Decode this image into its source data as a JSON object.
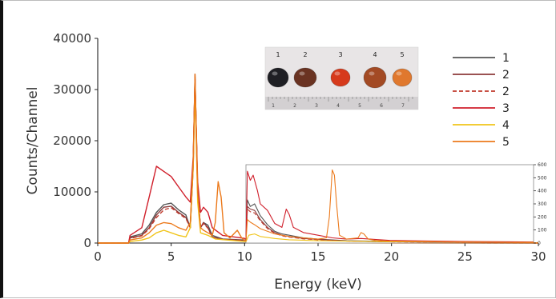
{
  "chart_data": {
    "type": "line",
    "title": "",
    "xlabel": "Energy (keV)",
    "ylabel": "Counts/Channel",
    "xlim": [
      0,
      30
    ],
    "ylim": [
      0,
      40000
    ],
    "xticks": [
      "0",
      "5",
      "10",
      "15",
      "20",
      "25",
      "30"
    ],
    "yticks": [
      "0",
      "10000",
      "20000",
      "30000",
      "40000"
    ],
    "grid": false,
    "legend_position": "top-right",
    "series": [
      {
        "name": "1",
        "color": "#555555",
        "dash": "",
        "points": [
          [
            0,
            0
          ],
          [
            2.1,
            0
          ],
          [
            2.2,
            1200
          ],
          [
            3,
            1800
          ],
          [
            3.5,
            3500
          ],
          [
            4,
            6000
          ],
          [
            4.5,
            7500
          ],
          [
            5,
            7800
          ],
          [
            5.5,
            6500
          ],
          [
            6,
            5500
          ],
          [
            6.3,
            3000
          ],
          [
            6.5,
            15000
          ],
          [
            6.62,
            32000
          ],
          [
            6.8,
            10000
          ],
          [
            7,
            3000
          ],
          [
            7.2,
            4000
          ],
          [
            7.5,
            3500
          ],
          [
            7.8,
            1500
          ],
          [
            8.5,
            800
          ],
          [
            10,
            600
          ],
          [
            10.2,
            400
          ],
          [
            12,
            250
          ],
          [
            15,
            100
          ],
          [
            20,
            40
          ],
          [
            30,
            20
          ]
        ]
      },
      {
        "name": "2",
        "color": "#8b3a3a",
        "dash": "",
        "points": [
          [
            0,
            0
          ],
          [
            2.1,
            0
          ],
          [
            2.2,
            1000
          ],
          [
            3,
            1500
          ],
          [
            3.5,
            3000
          ],
          [
            4,
            5500
          ],
          [
            4.5,
            7000
          ],
          [
            5,
            7200
          ],
          [
            5.5,
            6000
          ],
          [
            6,
            5000
          ],
          [
            6.3,
            3000
          ],
          [
            6.5,
            16000
          ],
          [
            6.62,
            33000
          ],
          [
            6.8,
            10000
          ],
          [
            7,
            3000
          ],
          [
            7.2,
            4000
          ],
          [
            7.5,
            3000
          ],
          [
            7.8,
            1200
          ],
          [
            8.5,
            700
          ],
          [
            10,
            500
          ],
          [
            10.2,
            350
          ],
          [
            12,
            200
          ],
          [
            15,
            80
          ],
          [
            20,
            30
          ],
          [
            30,
            15
          ]
        ]
      },
      {
        "name": "2",
        "color": "#c0392b",
        "dash": "5 3",
        "points": [
          [
            0,
            0
          ],
          [
            2.1,
            0
          ],
          [
            2.2,
            900
          ],
          [
            3,
            1400
          ],
          [
            3.5,
            2800
          ],
          [
            4,
            5000
          ],
          [
            4.5,
            6500
          ],
          [
            5,
            6900
          ],
          [
            5.5,
            5800
          ],
          [
            6,
            4800
          ],
          [
            6.3,
            3000
          ],
          [
            6.5,
            15500
          ],
          [
            6.62,
            32500
          ],
          [
            6.8,
            9500
          ],
          [
            7,
            3000
          ],
          [
            7.2,
            3800
          ],
          [
            7.5,
            2900
          ],
          [
            7.8,
            1100
          ],
          [
            8.5,
            700
          ],
          [
            10,
            500
          ],
          [
            10.2,
            320
          ],
          [
            12,
            180
          ],
          [
            15,
            70
          ],
          [
            20,
            25
          ],
          [
            30,
            12
          ]
        ]
      },
      {
        "name": "3",
        "color": "#d01f2b",
        "dash": "",
        "points": [
          [
            0,
            0
          ],
          [
            2.1,
            0
          ],
          [
            2.2,
            1500
          ],
          [
            3,
            3000
          ],
          [
            3.5,
            9000
          ],
          [
            4,
            15000
          ],
          [
            4.5,
            14000
          ],
          [
            5,
            13000
          ],
          [
            5.5,
            11000
          ],
          [
            6,
            9000
          ],
          [
            6.3,
            8000
          ],
          [
            6.5,
            17000
          ],
          [
            6.62,
            32000
          ],
          [
            6.8,
            12000
          ],
          [
            7,
            6000
          ],
          [
            7.2,
            7000
          ],
          [
            7.5,
            6000
          ],
          [
            7.8,
            3000
          ],
          [
            8.5,
            1500
          ],
          [
            10,
            900
          ],
          [
            10.2,
            550
          ],
          [
            10.5,
            500
          ],
          [
            11,
            350
          ],
          [
            12,
            200
          ],
          [
            12.8,
            280
          ],
          [
            13.3,
            150
          ],
          [
            15,
            80
          ],
          [
            20,
            30
          ],
          [
            30,
            15
          ]
        ]
      },
      {
        "name": "4",
        "color": "#f0c419",
        "dash": "",
        "points": [
          [
            0,
            0
          ],
          [
            2.1,
            0
          ],
          [
            2.2,
            300
          ],
          [
            3,
            600
          ],
          [
            3.5,
            1000
          ],
          [
            4,
            2000
          ],
          [
            4.5,
            2500
          ],
          [
            5,
            2000
          ],
          [
            5.5,
            1500
          ],
          [
            6,
            1200
          ],
          [
            6.3,
            3000
          ],
          [
            6.5,
            15000
          ],
          [
            6.62,
            30000
          ],
          [
            6.8,
            8000
          ],
          [
            7,
            2000
          ],
          [
            7.5,
            1500
          ],
          [
            8,
            800
          ],
          [
            10,
            300
          ],
          [
            15,
            50
          ],
          [
            30,
            10
          ]
        ]
      },
      {
        "name": "5",
        "color": "#ec7a1c",
        "dash": "",
        "points": [
          [
            0,
            0
          ],
          [
            2.1,
            0
          ],
          [
            2.2,
            600
          ],
          [
            3,
            1000
          ],
          [
            3.5,
            2000
          ],
          [
            4,
            3500
          ],
          [
            4.5,
            4000
          ],
          [
            5,
            3800
          ],
          [
            5.5,
            3000
          ],
          [
            6,
            2500
          ],
          [
            6.3,
            4000
          ],
          [
            6.5,
            16000
          ],
          [
            6.62,
            33000
          ],
          [
            6.8,
            10000
          ],
          [
            7,
            3000
          ],
          [
            7.2,
            2500
          ],
          [
            7.5,
            2000
          ],
          [
            7.8,
            1500
          ],
          [
            8,
            4000
          ],
          [
            8.2,
            12000
          ],
          [
            8.4,
            9000
          ],
          [
            8.6,
            2000
          ],
          [
            9,
            1000
          ],
          [
            9.5,
            2500
          ],
          [
            9.8,
            1000
          ],
          [
            10,
            500
          ],
          [
            10.2,
            300
          ],
          [
            12,
            150
          ],
          [
            15,
            100
          ],
          [
            15.8,
            200
          ],
          [
            16,
            560
          ],
          [
            16.2,
            500
          ],
          [
            16.5,
            100
          ],
          [
            17,
            30
          ],
          [
            17.8,
            40
          ],
          [
            18,
            80
          ],
          [
            18.2,
            60
          ],
          [
            18.5,
            30
          ],
          [
            20,
            20
          ],
          [
            30,
            10
          ]
        ]
      }
    ],
    "inset": {
      "xlim": [
        10,
        30
      ],
      "ylim": [
        0,
        600
      ],
      "yticks": [
        "0",
        "100",
        "200",
        "300",
        "400",
        "500",
        "600"
      ],
      "series": [
        {
          "ref": 0,
          "points": [
            [
              10,
              20
            ],
            [
              10.1,
              330
            ],
            [
              10.3,
              280
            ],
            [
              10.6,
              300
            ],
            [
              11,
              210
            ],
            [
              11.5,
              140
            ],
            [
              12,
              90
            ],
            [
              12.5,
              70
            ],
            [
              13,
              60
            ],
            [
              14,
              40
            ],
            [
              15,
              30
            ],
            [
              17,
              18
            ],
            [
              20,
              12
            ],
            [
              25,
              6
            ],
            [
              30,
              4
            ]
          ]
        },
        {
          "ref": 1,
          "points": [
            [
              10,
              20
            ],
            [
              10.1,
              280
            ],
            [
              10.3,
              260
            ],
            [
              10.6,
              250
            ],
            [
              11,
              180
            ],
            [
              11.5,
              120
            ],
            [
              12,
              80
            ],
            [
              12.5,
              60
            ],
            [
              13,
              50
            ],
            [
              14,
              35
            ],
            [
              15,
              28
            ],
            [
              17,
              16
            ],
            [
              20,
              10
            ],
            [
              25,
              5
            ],
            [
              30,
              3
            ]
          ]
        },
        {
          "ref": 2,
          "points": [
            [
              10,
              20
            ],
            [
              10.1,
              260
            ],
            [
              10.3,
              240
            ],
            [
              10.6,
              230
            ],
            [
              11,
              170
            ],
            [
              11.5,
              110
            ],
            [
              12,
              75
            ],
            [
              12.5,
              55
            ],
            [
              13,
              45
            ],
            [
              14,
              32
            ],
            [
              15,
              25
            ],
            [
              17,
              15
            ],
            [
              20,
              9
            ],
            [
              25,
              5
            ],
            [
              30,
              3
            ]
          ]
        },
        {
          "ref": 3,
          "points": [
            [
              10,
              30
            ],
            [
              10.1,
              550
            ],
            [
              10.3,
              480
            ],
            [
              10.5,
              520
            ],
            [
              10.8,
              400
            ],
            [
              11,
              300
            ],
            [
              11.5,
              250
            ],
            [
              12,
              150
            ],
            [
              12.5,
              120
            ],
            [
              12.8,
              260
            ],
            [
              13,
              220
            ],
            [
              13.3,
              120
            ],
            [
              14,
              80
            ],
            [
              15,
              60
            ],
            [
              16,
              40
            ],
            [
              17,
              30
            ],
            [
              18,
              35
            ],
            [
              20,
              20
            ],
            [
              25,
              12
            ],
            [
              30,
              8
            ]
          ]
        },
        {
          "ref": 4,
          "points": [
            [
              10,
              10
            ],
            [
              10.2,
              60
            ],
            [
              10.6,
              70
            ],
            [
              11,
              50
            ],
            [
              12,
              35
            ],
            [
              13,
              25
            ],
            [
              15,
              18
            ],
            [
              20,
              10
            ],
            [
              30,
              5
            ]
          ]
        },
        {
          "ref": 5,
          "points": [
            [
              10,
              15
            ],
            [
              10.1,
              180
            ],
            [
              10.3,
              160
            ],
            [
              10.6,
              140
            ],
            [
              11,
              110
            ],
            [
              12,
              70
            ],
            [
              13,
              50
            ],
            [
              14,
              40
            ],
            [
              15,
              30
            ],
            [
              15.6,
              40
            ],
            [
              15.8,
              200
            ],
            [
              16,
              560
            ],
            [
              16.15,
              520
            ],
            [
              16.3,
              300
            ],
            [
              16.5,
              60
            ],
            [
              17,
              30
            ],
            [
              17.8,
              40
            ],
            [
              18,
              80
            ],
            [
              18.2,
              70
            ],
            [
              18.5,
              30
            ],
            [
              19,
              20
            ],
            [
              20,
              15
            ],
            [
              25,
              8
            ],
            [
              30,
              5
            ]
          ]
        }
      ]
    },
    "photo": {
      "labels": [
        "1",
        "2",
        "3",
        "4",
        "5"
      ],
      "stone_colors": [
        "#1f1f24",
        "#6a3322",
        "#d63a1c",
        "#a34a24",
        "#e0782e"
      ],
      "ruler_labels": [
        "1",
        "2",
        "3",
        "4",
        "5",
        "6",
        "7"
      ]
    }
  }
}
